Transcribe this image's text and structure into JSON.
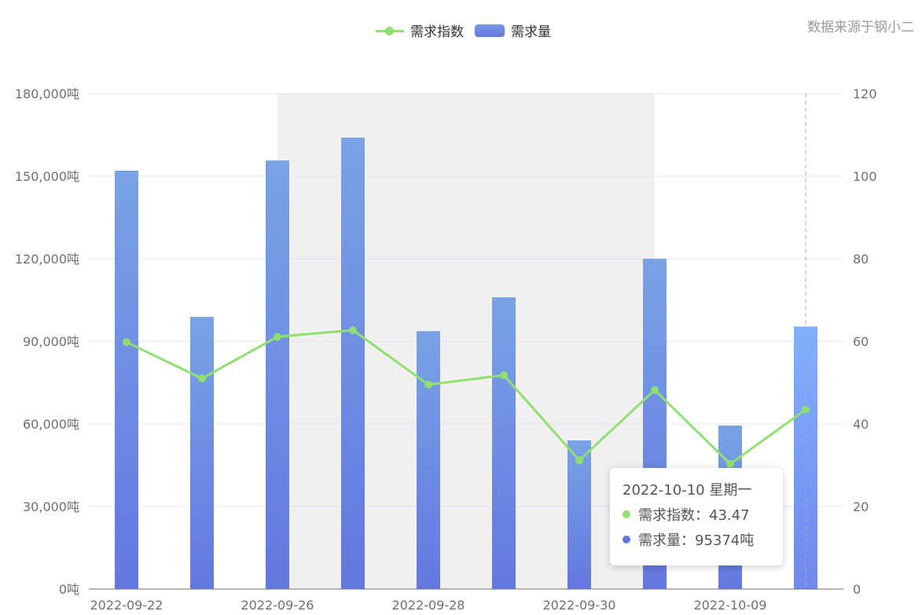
{
  "source_note": "数据来源于钢小二",
  "colors": {
    "line": "#8fe070",
    "bar_top": "#78a3e6",
    "bar_bottom": "#6477e0",
    "last_bar_top": "#80b0ff",
    "last_bar_bottom": "#7088f0"
  },
  "chart_data": {
    "type": "bar+line",
    "categories": [
      "2022-09-22",
      "",
      "2022-09-26",
      "",
      "2022-09-28",
      "",
      "2022-09-30",
      "",
      "2022-10-09",
      "2022-10-10"
    ],
    "x_tick_labels": [
      "2022-09-22",
      "2022-09-26",
      "2022-09-28",
      "2022-09-30",
      "2022-10-09"
    ],
    "series": [
      {
        "name": "需求量",
        "type": "bar",
        "axis": "left",
        "values": [
          152000,
          98900,
          155700,
          164000,
          93700,
          106000,
          54000,
          120000,
          59400,
          95374
        ]
      },
      {
        "name": "需求指数",
        "type": "line",
        "axis": "right",
        "values": [
          59.8,
          51.0,
          61.1,
          62.7,
          49.5,
          51.8,
          31.2,
          48.2,
          30.3,
          43.47
        ]
      }
    ],
    "y_left": {
      "range": [
        0,
        180000
      ],
      "ticks": [
        "0吨",
        "30,000吨",
        "60,000吨",
        "90,000吨",
        "120,000吨",
        "150,000吨",
        "180,000吨"
      ]
    },
    "y_right": {
      "range": [
        0,
        120
      ],
      "ticks": [
        "0",
        "20",
        "40",
        "60",
        "80",
        "100",
        "120"
      ]
    },
    "grid": true,
    "legend_position": "top-center",
    "highlighted_range": [
      "2022-09-26",
      "2022-09-30"
    ]
  },
  "tooltip": {
    "title": "2022-10-10 星期一",
    "rows": [
      {
        "label": "需求指数：43.47",
        "color": "#8fe070"
      },
      {
        "label": "需求量：95374吨",
        "color": "#6277de"
      }
    ]
  }
}
